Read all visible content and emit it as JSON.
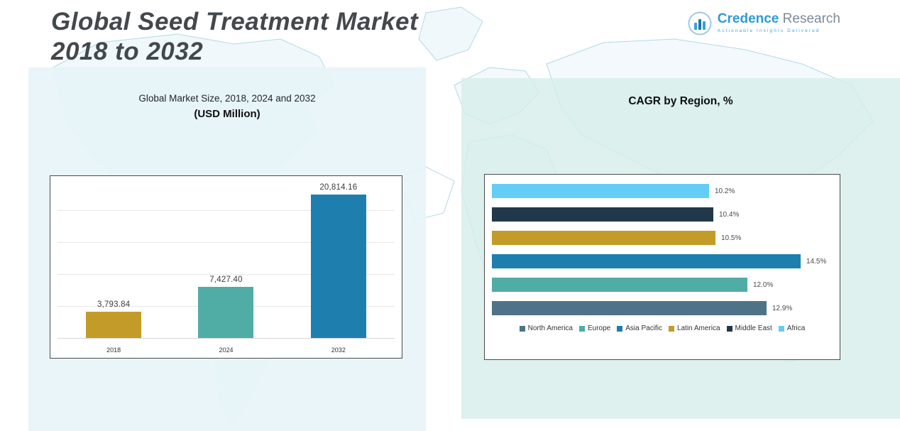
{
  "header": {
    "title_line1": "Global Seed Treatment Market",
    "title_line2": "2018 to 2032",
    "logo": {
      "name_primary": "Credence",
      "name_secondary": " Research",
      "tagline": "Actionable Insights Delivered"
    }
  },
  "colors": {
    "gold": "#c39b28",
    "teal": "#4fada5",
    "blue": "#1e7faf",
    "light_blue": "#63cdf6",
    "navy": "#20384a",
    "slate": "#4e7389",
    "accent_logo": "#2e9bd6"
  },
  "chart_data": [
    {
      "type": "bar",
      "title": "Global Market Size, 2018, 2024 and 2032",
      "subtitle": "(USD Million)",
      "categories": [
        "2018",
        "2024",
        "2032"
      ],
      "values": [
        3793.84,
        7427.4,
        20814.16
      ],
      "value_labels": [
        "3,793.84",
        "7,427.40",
        "20,814.16"
      ],
      "bar_colors": [
        "#c39b28",
        "#4fada5",
        "#1e7faf"
      ],
      "xlabel": "",
      "ylabel": "",
      "ylim": [
        0,
        23000
      ],
      "grid": true,
      "legend_position": "none"
    },
    {
      "type": "bar",
      "orientation": "horizontal",
      "title": "CAGR by Region, %",
      "categories": [
        "Africa",
        "Middle East",
        "Latin America",
        "Asia Pacific",
        "Europe",
        "North America"
      ],
      "values": [
        10.2,
        10.4,
        10.5,
        14.5,
        12.0,
        12.9
      ],
      "value_labels": [
        "10.2%",
        "10.4%",
        "10.5%",
        "14.5%",
        "12.0%",
        "12.9%"
      ],
      "bar_colors": [
        "#63cdf6",
        "#20384a",
        "#c39b28",
        "#1e7faf",
        "#4fada5",
        "#4e7389"
      ],
      "xlim": [
        0,
        15
      ],
      "grid": false,
      "legend_position": "bottom",
      "legend": [
        {
          "label": "North America",
          "color": "#4e7389"
        },
        {
          "label": "Europe",
          "color": "#4fada5"
        },
        {
          "label": "Asia Pacific",
          "color": "#1e7faf"
        },
        {
          "label": "Latin America",
          "color": "#c39b28"
        },
        {
          "label": "Middle East",
          "color": "#20384a"
        },
        {
          "label": "Africa",
          "color": "#63cdf6"
        }
      ]
    }
  ]
}
